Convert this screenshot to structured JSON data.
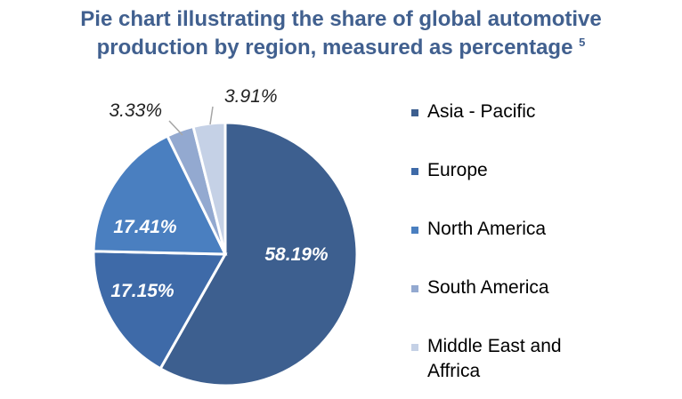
{
  "title": {
    "line1": "Pie chart illustrating the share of global automotive",
    "line2": "production by region, measured as percentage",
    "superscript": "5"
  },
  "chart_data": {
    "type": "pie",
    "title": "Pie chart illustrating the share of global automotive production by region, measured as percentage",
    "categories": [
      "Asia - Pacific",
      "Europe",
      "North America",
      "South America",
      "Middle East and Affrica"
    ],
    "values": [
      58.19,
      17.15,
      17.41,
      3.33,
      3.91
    ],
    "labels": [
      "58.19%",
      "17.15%",
      "17.41%",
      "3.33%",
      "3.91%"
    ],
    "colors": [
      "#3d5f8f",
      "#3e6aa8",
      "#4a7fc0",
      "#93a9d0",
      "#c5d1e6"
    ],
    "start_angle_deg": 0,
    "direction": "clockwise",
    "legend_position": "right"
  }
}
